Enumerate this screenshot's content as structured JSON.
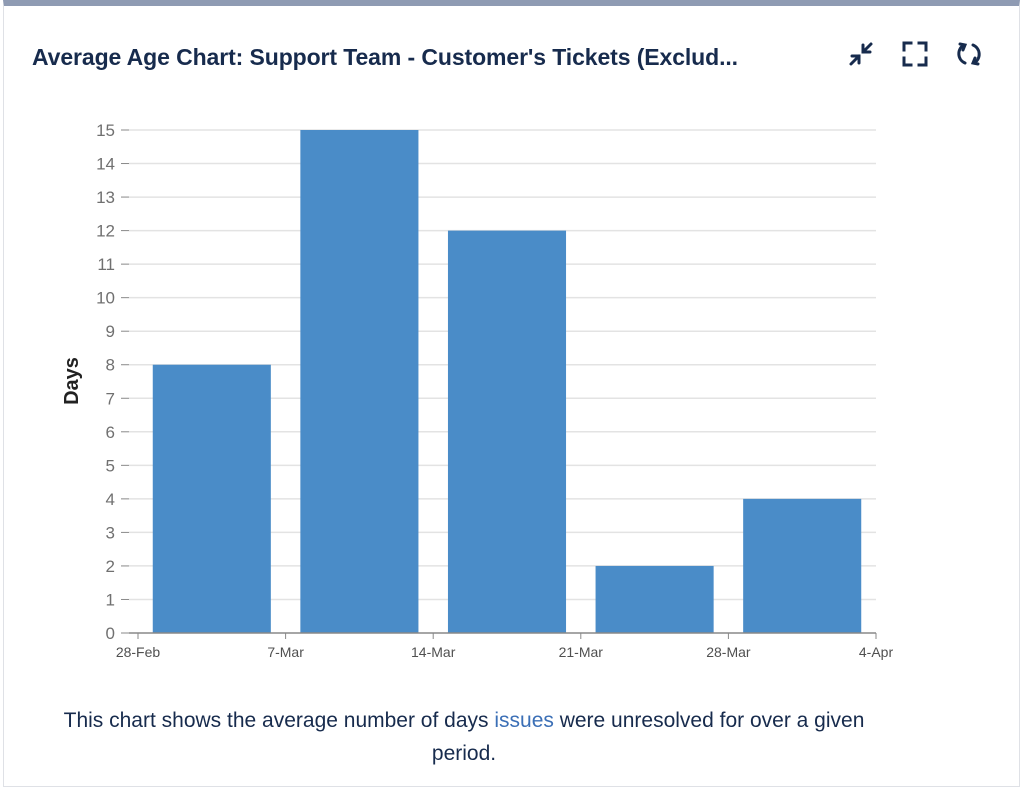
{
  "gadget": {
    "title": "Average Age Chart: Support Team - Customer's Tickets (Exclud...",
    "icons": [
      "minimize-icon",
      "fullscreen-icon",
      "refresh-icon"
    ]
  },
  "caption": {
    "before": "This chart shows the average number of days ",
    "link": "issues",
    "after": " were unresolved for over a given period."
  },
  "colors": {
    "bar": "#4a8cc8",
    "grid": "#e3e3e3",
    "axis": "#888888"
  },
  "chart_data": {
    "type": "bar",
    "categories": [
      "28-Feb",
      "7-Mar",
      "14-Mar",
      "21-Mar",
      "28-Mar"
    ],
    "x_tick_labels": [
      "28-Feb",
      "7-Mar",
      "14-Mar",
      "21-Mar",
      "28-Mar",
      "4-Apr"
    ],
    "values": [
      8,
      15,
      12,
      2,
      4
    ],
    "title": "",
    "xlabel": "",
    "ylabel": "Days",
    "ylim": [
      0,
      15
    ],
    "yticks": [
      0,
      1,
      2,
      3,
      4,
      5,
      6,
      7,
      8,
      9,
      10,
      11,
      12,
      13,
      14,
      15
    ],
    "grid": true,
    "legend": "none"
  }
}
